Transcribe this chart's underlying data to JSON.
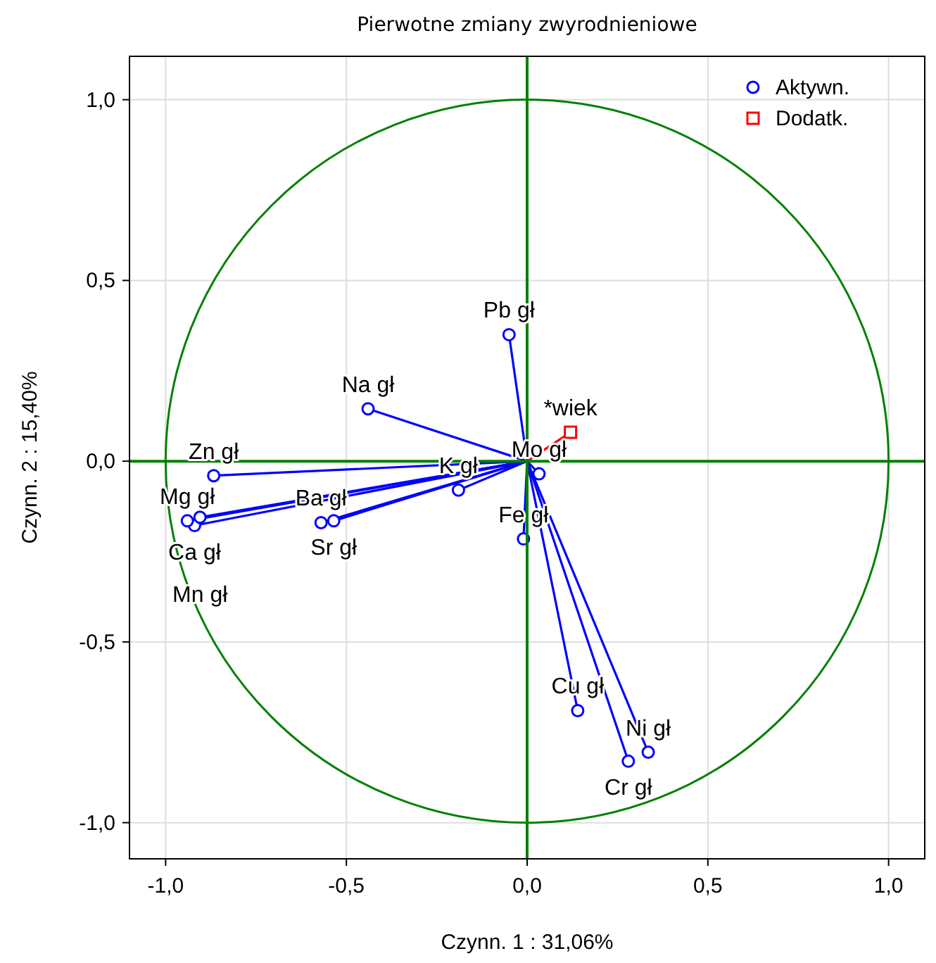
{
  "chart_data": {
    "type": "scatter",
    "title": "Pierwotne zmiany zwyrodnieniowe",
    "xlabel": "Czynn. 1 : 31,06%",
    "ylabel": "Czynn. 2 : 15,40%",
    "xlim": [
      -1.1,
      1.1
    ],
    "ylim": [
      -1.1,
      1.12
    ],
    "xticks": [
      {
        "value": -1,
        "label": "-1,0"
      },
      {
        "value": -0.5,
        "label": "-0,5"
      },
      {
        "value": 0,
        "label": "0,0"
      },
      {
        "value": 0.5,
        "label": "0,5"
      },
      {
        "value": 1,
        "label": "1,0"
      }
    ],
    "yticks": [
      {
        "value": -1,
        "label": "-1,0"
      },
      {
        "value": -0.5,
        "label": "-0,5"
      },
      {
        "value": 0,
        "label": "0,0"
      },
      {
        "value": 0.5,
        "label": "0,5"
      },
      {
        "value": 1,
        "label": "1,0"
      }
    ],
    "grid": true,
    "legend": "top right",
    "series": [
      {
        "name": "Aktywn.",
        "color": "#0000ff",
        "marker": "circle",
        "x": [
          -0.867,
          -0.92,
          -0.94,
          -0.905,
          -0.57,
          -0.535,
          -0.19,
          -0.44,
          -0.05,
          0.033,
          -0.01,
          0.14,
          0.28,
          0.335
        ],
        "values": [
          -0.04,
          -0.178,
          -0.165,
          -0.155,
          -0.17,
          -0.165,
          -0.08,
          0.145,
          0.35,
          -0.035,
          -0.215,
          -0.69,
          -0.83,
          -0.805
        ]
      },
      {
        "name": "Dodatk.",
        "color": "#ff0000",
        "marker": "square",
        "x": [
          0.12
        ],
        "values": [
          0.08
        ]
      }
    ],
    "annotations": [
      {
        "text": "Zn gł",
        "x": -0.867,
        "y": -0.04
      },
      {
        "text": "Ca gł",
        "x": -0.92,
        "y": -0.178
      },
      {
        "text": "Mg gł",
        "x": -0.94,
        "y": -0.165
      },
      {
        "text": "Mn gł",
        "x": -0.905,
        "y": -0.155
      },
      {
        "text": "Ba gł",
        "x": -0.57,
        "y": -0.17
      },
      {
        "text": "Sr gł",
        "x": -0.535,
        "y": -0.165
      },
      {
        "text": "K gł",
        "x": -0.19,
        "y": -0.08
      },
      {
        "text": "Na gł",
        "x": -0.44,
        "y": 0.145
      },
      {
        "text": "Pb gł",
        "x": -0.05,
        "y": 0.35
      },
      {
        "text": "Mo gł",
        "x": 0.033,
        "y": -0.035
      },
      {
        "text": "Fe gł",
        "x": -0.01,
        "y": -0.215
      },
      {
        "text": "Cu gł",
        "x": 0.14,
        "y": -0.69
      },
      {
        "text": "Cr gł",
        "x": 0.28,
        "y": -0.83
      },
      {
        "text": "Ni gł",
        "x": 0.335,
        "y": -0.805
      },
      {
        "text": "*wiek",
        "x": 0.12,
        "y": 0.08
      }
    ]
  }
}
